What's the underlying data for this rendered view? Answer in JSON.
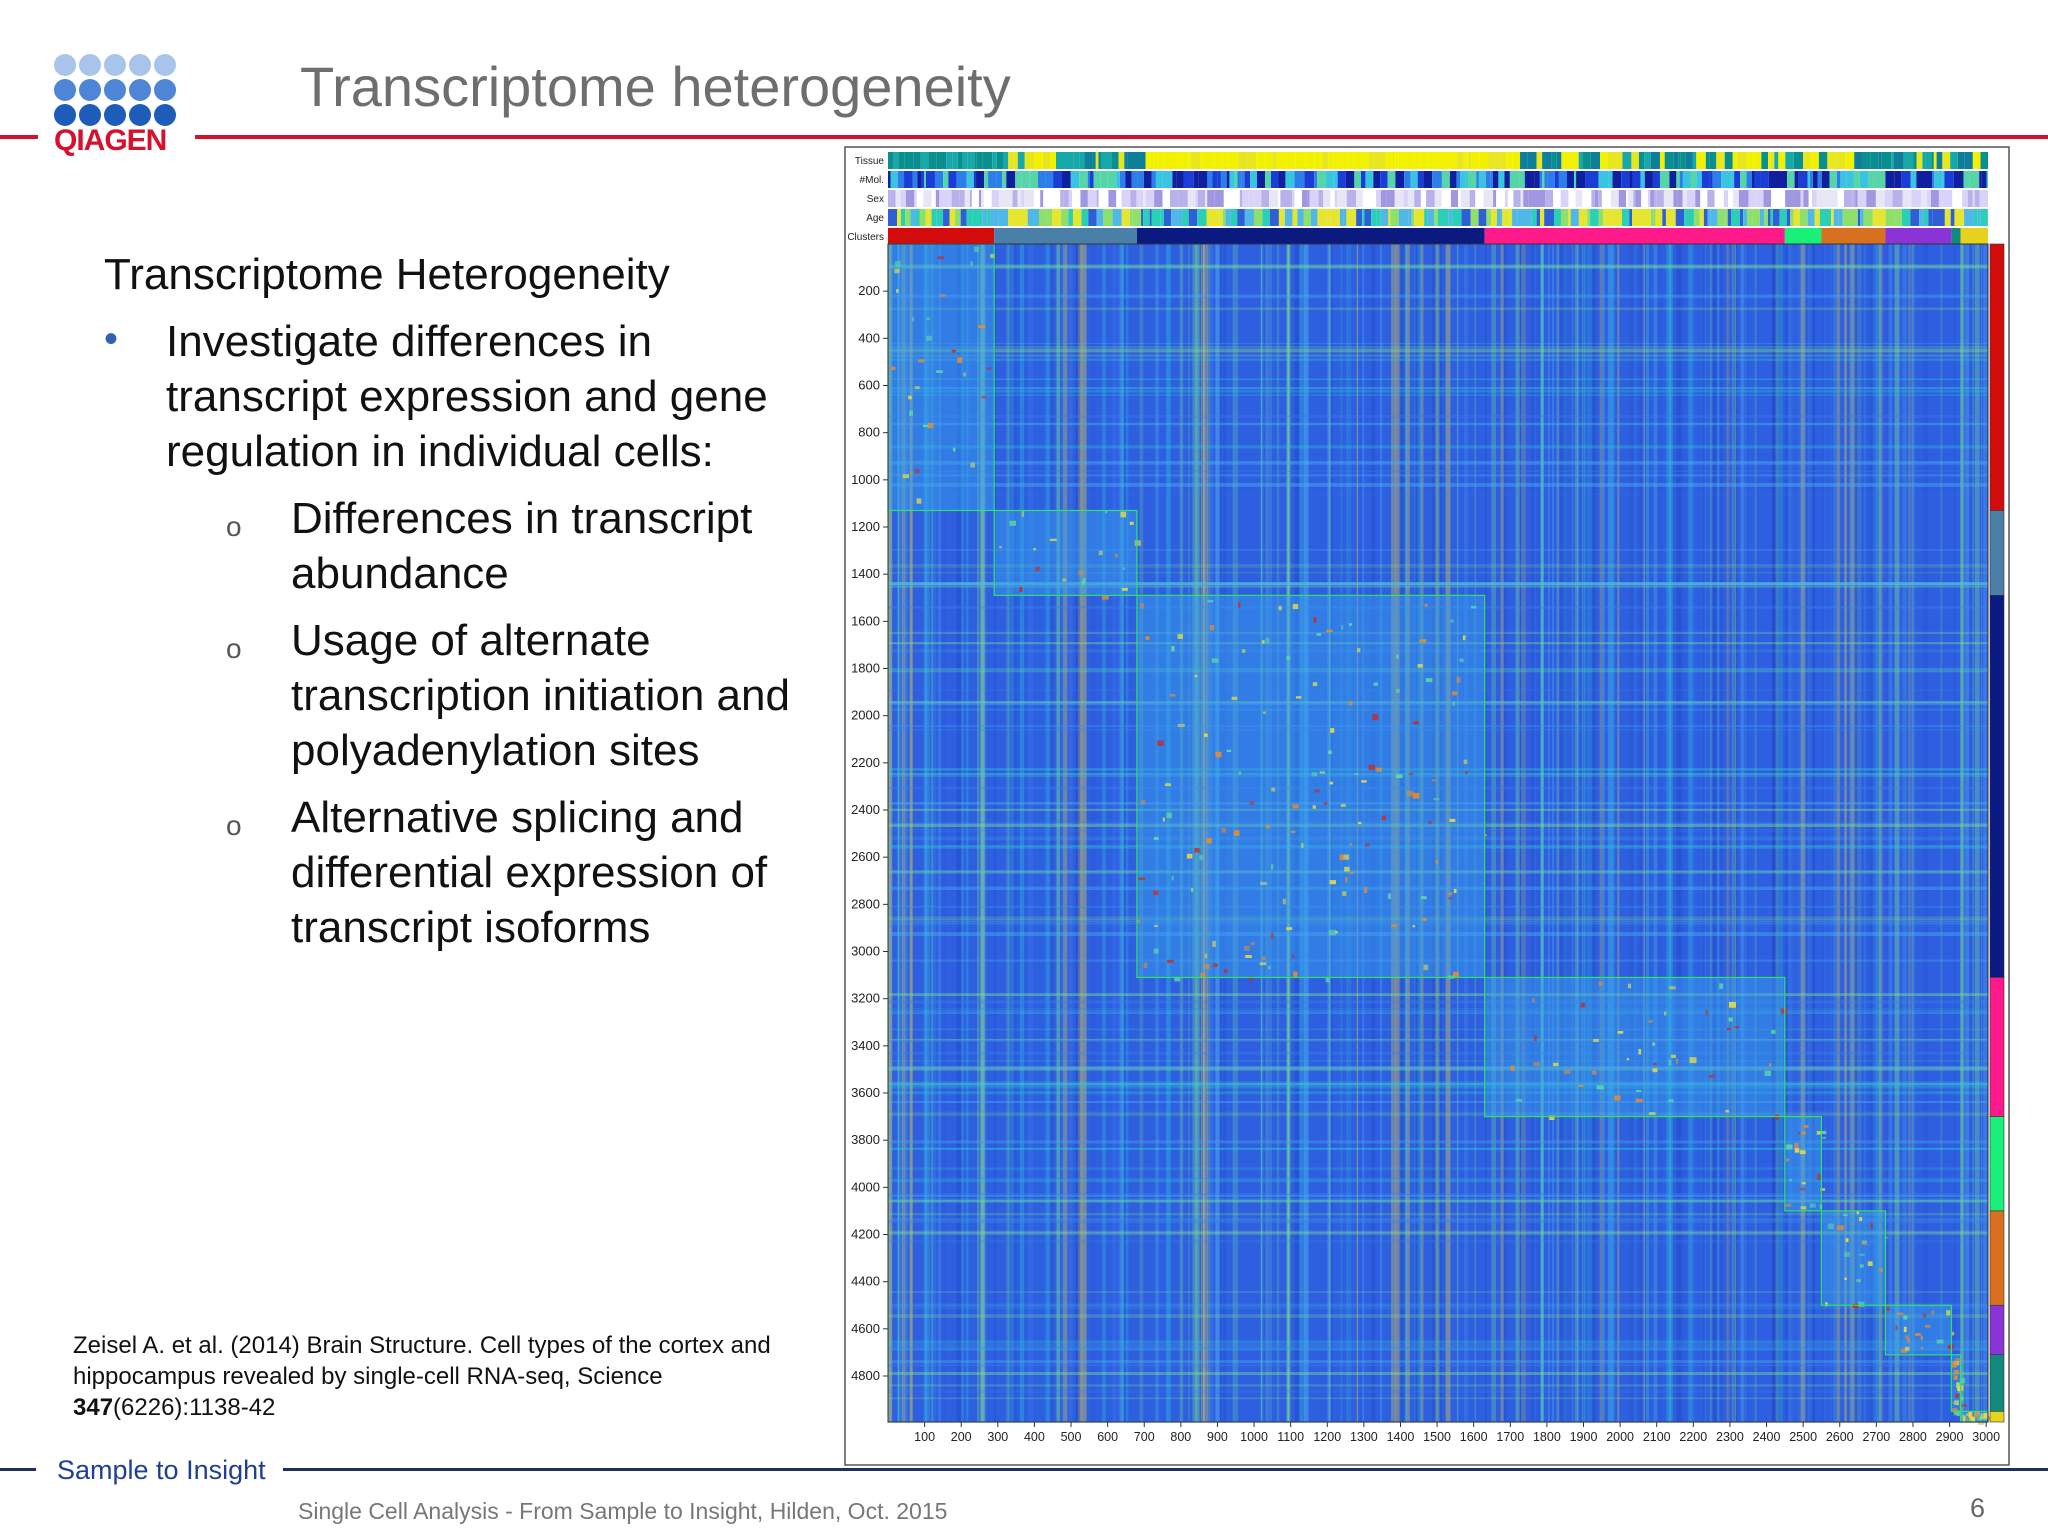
{
  "header": {
    "title": "Transcriptome heterogeneity",
    "logo_text": "QIAGEN"
  },
  "content": {
    "heading": "Transcriptome Heterogeneity",
    "bullet": "Investigate differences in transcript expression and gene regulation in individual  cells:",
    "sub_items": [
      "Differences in transcript abundance",
      "Usage of alternate transcription initiation and polyadenylation sites",
      "Alternative splicing and differential expression of transcript isoforms"
    ]
  },
  "citation": {
    "text": "Zeisel A. et al. (2014) Brain Structure. Cell  types of the cortex and hippocampus  revealed by single-cell RNA-seq, Science",
    "volume": "347",
    "pages": "(6226):1138-42"
  },
  "footer": {
    "tagline": "Sample to Insight",
    "event": "Single Cell Analysis - From Sample to Insight, Hilden, Oct. 2015",
    "page_number": "6"
  },
  "colors": {
    "brand_red": "#d4122e",
    "brand_navy": "#1f2f66",
    "logo_dots_light": "#a9c4ea",
    "logo_dots_mid": "#4f85d6",
    "logo_dots_dark": "#1d5cb8",
    "heatmap_background": "#2d5fe0"
  },
  "chart_data": {
    "type": "heatmap",
    "annotation_tracks": [
      "Tissue",
      "#Mol.",
      "Sex",
      "Age",
      "Clusters"
    ],
    "yticks": [
      "200",
      "400",
      "600",
      "800",
      "1000",
      "1200",
      "1400",
      "1600",
      "1800",
      "2000",
      "2200",
      "2400",
      "2600",
      "2800",
      "3000",
      "3200",
      "3400",
      "3600",
      "3800",
      "4000",
      "4200",
      "4400",
      "4600",
      "4800"
    ],
    "xticks": [
      "100",
      "200",
      "300",
      "400",
      "500",
      "600",
      "700",
      "800",
      "900",
      "1000",
      "1100",
      "1200",
      "1300",
      "1400",
      "1500",
      "1600",
      "1700",
      "1800",
      "1900",
      "2000",
      "2100",
      "2200",
      "2300",
      "2400",
      "2500",
      "2600",
      "2700",
      "2800",
      "2900",
      "3000"
    ],
    "xlim": [
      0,
      3005
    ],
    "ylim": [
      0,
      4995
    ],
    "clusters": [
      {
        "color": "#d40b0b",
        "x": [
          0,
          290
        ],
        "y": [
          0,
          1130
        ]
      },
      {
        "color": "#4a7fa8",
        "x": [
          290,
          680
        ],
        "y": [
          1130,
          1490
        ]
      },
      {
        "color": "#0b1a80",
        "x": [
          680,
          1630
        ],
        "y": [
          1490,
          3110
        ]
      },
      {
        "color": "#ff1a8c",
        "x": [
          1630,
          2450
        ],
        "y": [
          3110,
          3700
        ]
      },
      {
        "color": "#19f07a",
        "x": [
          2450,
          2550
        ],
        "y": [
          3700,
          4100
        ]
      },
      {
        "color": "#d9701f",
        "x": [
          2550,
          2725
        ],
        "y": [
          4100,
          4500
        ]
      },
      {
        "color": "#8a33d6",
        "x": [
          2725,
          2905
        ],
        "y": [
          4500,
          4710
        ]
      },
      {
        "color": "#118a7d",
        "x": [
          2905,
          2930
        ],
        "y": [
          4710,
          4950
        ]
      },
      {
        "color": "#e6d21f",
        "x": [
          2930,
          3005
        ],
        "y": [
          4950,
          4995
        ]
      }
    ]
  }
}
